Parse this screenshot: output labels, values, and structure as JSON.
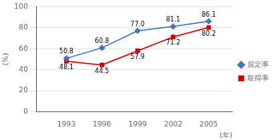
{
  "chart_data": {
    "type": "line",
    "x": [
      1993,
      1996,
      1999,
      2002,
      2005
    ],
    "series": [
      {
        "name": "規定率",
        "color": "#4472c4",
        "marker": "diamond",
        "values": [
          50.8,
          60.8,
          77.0,
          81.1,
          86.1
        ],
        "value_labels": [
          "50.8",
          "60.8",
          "77.0",
          "81.1",
          "86.1"
        ]
      },
      {
        "name": "取得率",
        "color": "#cc0000",
        "marker": "square",
        "values": [
          48.1,
          44.5,
          57.9,
          71.2,
          80.2
        ],
        "value_labels": [
          "48.1",
          "44.5",
          "57.9",
          "71.2",
          "80.2"
        ]
      }
    ],
    "xlabel": "(年)",
    "ylabel": "(%)",
    "xlim": [
      1990.5,
      2007
    ],
    "xticks": [
      1993,
      1996,
      1999,
      2002,
      2005
    ],
    "ylim": [
      0,
      100
    ],
    "yticks": [
      0,
      20,
      40,
      60,
      80,
      100
    ],
    "grid": "y",
    "legend": "right",
    "data_labels": true
  }
}
